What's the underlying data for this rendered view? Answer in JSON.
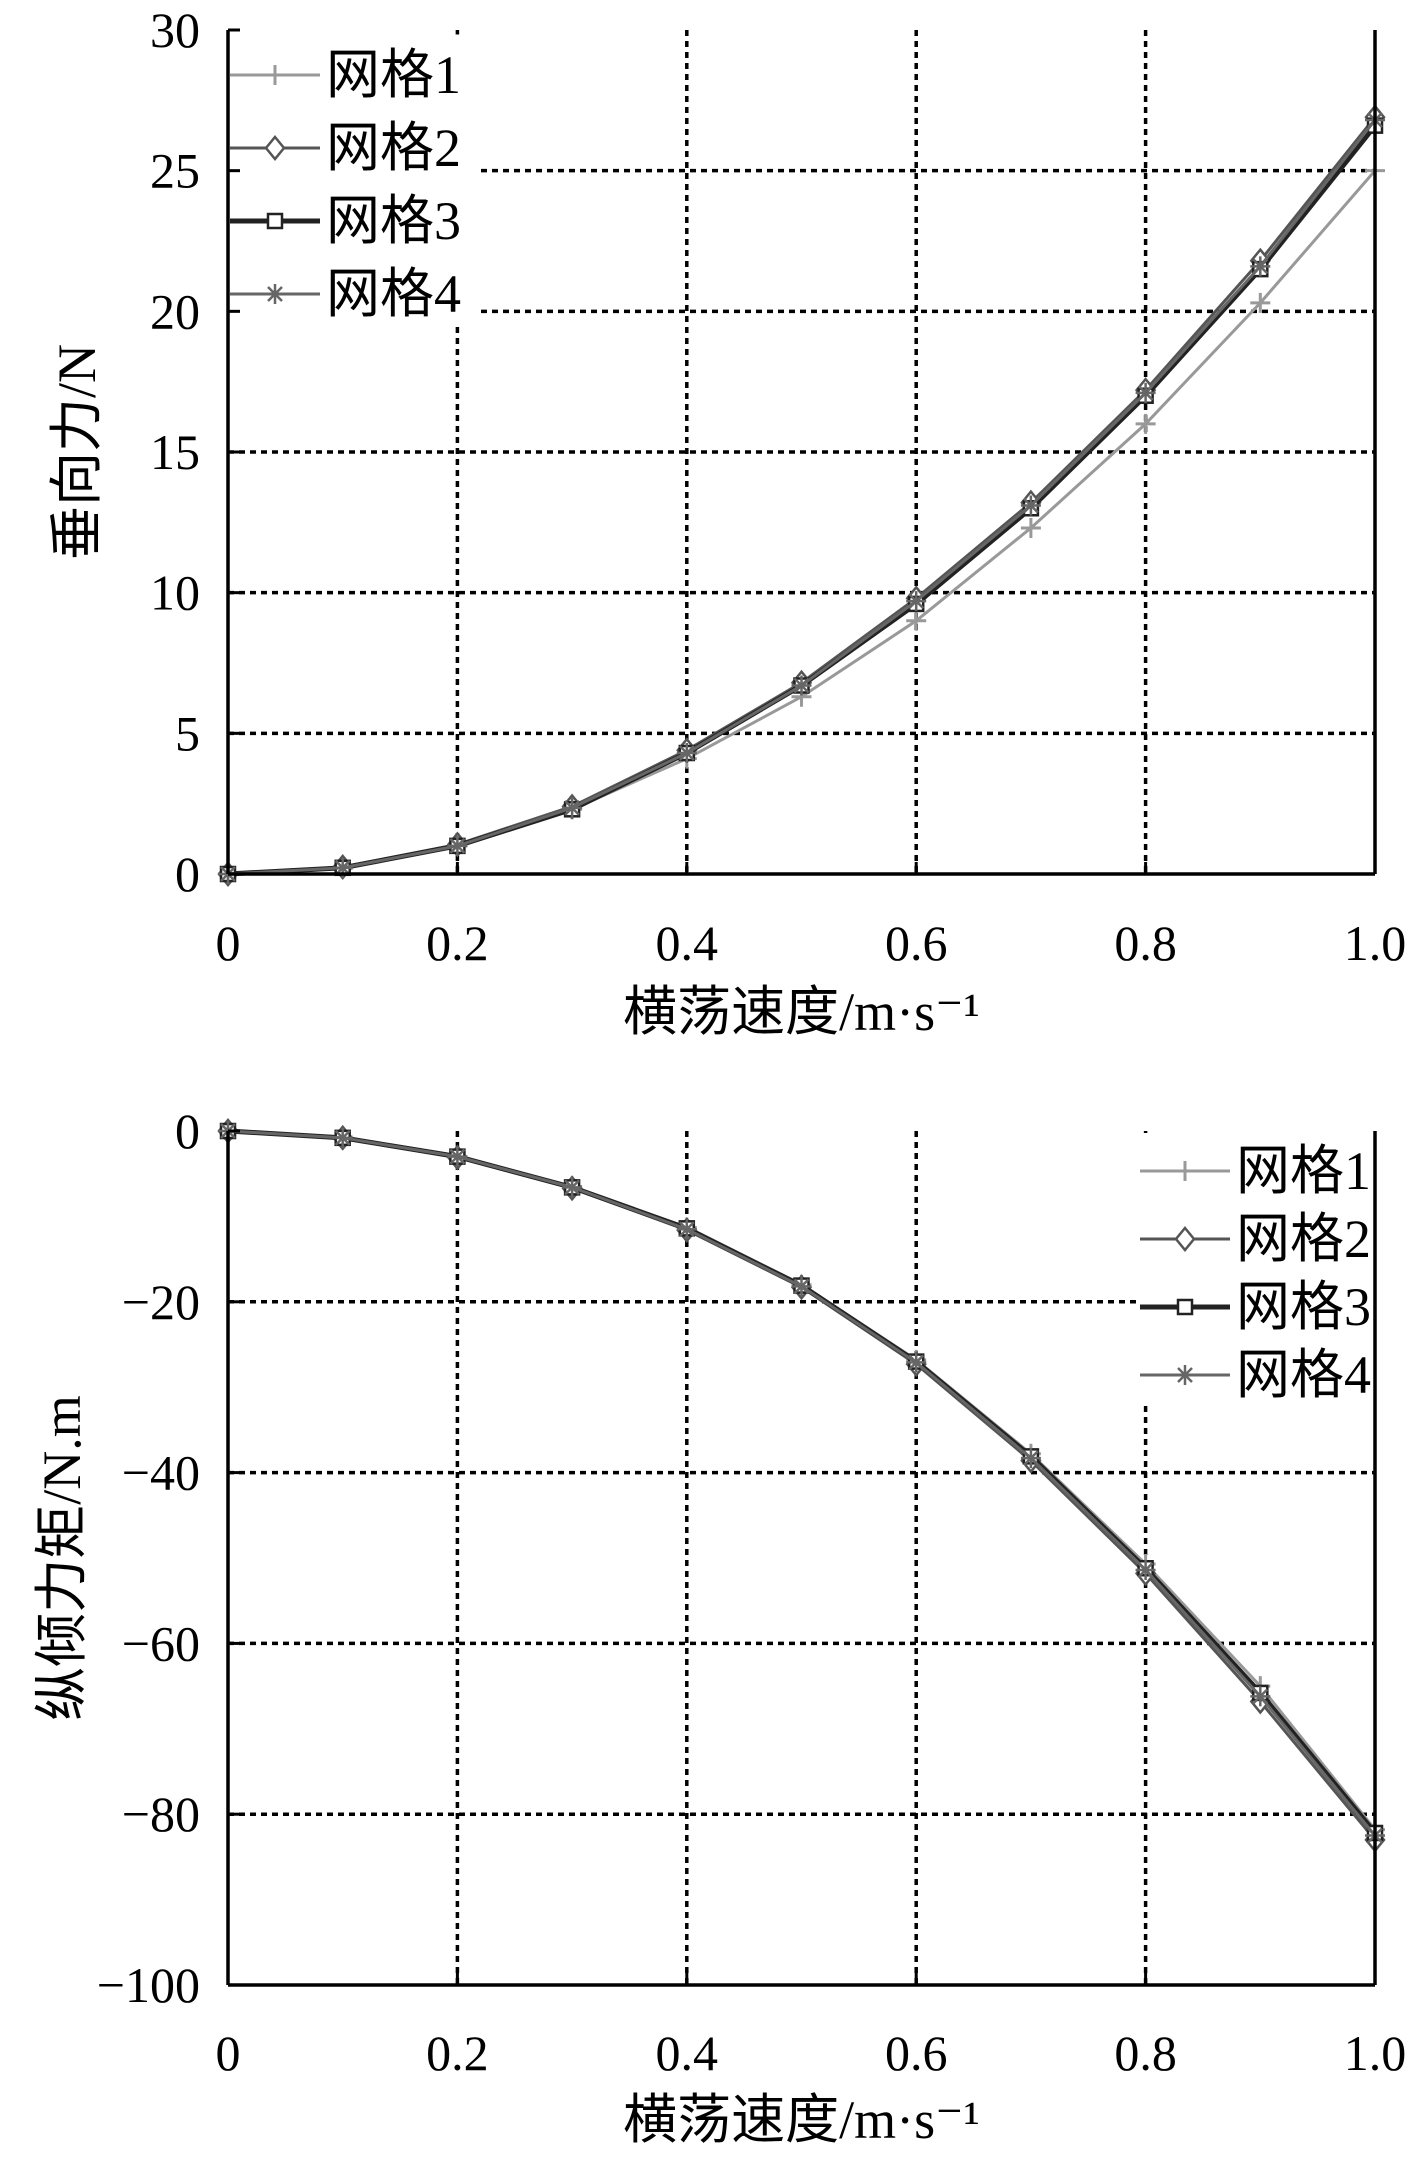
{
  "chart_data": [
    {
      "type": "line",
      "xlabel": "横荡速度/m·s⁻¹",
      "ylabel": "垂向力/N",
      "xlim": [
        0,
        1.0
      ],
      "ylim": [
        0,
        30
      ],
      "xticks": [
        "0",
        "0.2",
        "0.4",
        "0.6",
        "0.8",
        "1.0"
      ],
      "yticks": [
        "0",
        "5",
        "10",
        "15",
        "20",
        "25",
        "30"
      ],
      "grid": true,
      "legend_position": "top-left",
      "x": [
        0,
        0.1,
        0.2,
        0.3,
        0.4,
        0.5,
        0.6,
        0.7,
        0.8,
        0.9,
        1.0
      ],
      "series": [
        {
          "name": "网格1",
          "marker": "plus",
          "color": "#999999",
          "values": [
            0,
            0.2,
            1.0,
            2.3,
            4.1,
            6.3,
            9.0,
            12.3,
            16.0,
            20.3,
            25.0
          ]
        },
        {
          "name": "网格2",
          "marker": "diamond",
          "color": "#555555",
          "values": [
            0,
            0.25,
            1.05,
            2.4,
            4.4,
            6.8,
            9.8,
            13.2,
            17.2,
            21.8,
            26.9
          ]
        },
        {
          "name": "网格3",
          "marker": "square",
          "color": "#222222",
          "values": [
            0,
            0.22,
            1.0,
            2.3,
            4.3,
            6.7,
            9.6,
            13.0,
            17.0,
            21.5,
            26.6
          ]
        },
        {
          "name": "网格4",
          "marker": "star",
          "color": "#666666",
          "values": [
            0,
            0.22,
            1.0,
            2.35,
            4.3,
            6.7,
            9.7,
            13.1,
            17.1,
            21.6,
            26.8
          ]
        }
      ]
    },
    {
      "type": "line",
      "xlabel": "横荡速度/m·s⁻¹",
      "ylabel": "纵倾力矩/N.m",
      "xlim": [
        0,
        1.0
      ],
      "ylim": [
        -100,
        0
      ],
      "xticks": [
        "0",
        "0.2",
        "0.4",
        "0.6",
        "0.8",
        "1.0"
      ],
      "yticks": [
        "0",
        "−20",
        "−40",
        "−60",
        "−80",
        "−100"
      ],
      "grid": true,
      "legend_position": "top-right",
      "x": [
        0,
        0.1,
        0.2,
        0.3,
        0.4,
        0.5,
        0.6,
        0.7,
        0.8,
        0.9,
        1.0
      ],
      "series": [
        {
          "name": "网格1",
          "marker": "plus",
          "color": "#999999",
          "values": [
            0,
            -0.7,
            -3.0,
            -6.5,
            -11.3,
            -18.0,
            -26.8,
            -37.8,
            -50.7,
            -65.0,
            -81.8
          ]
        },
        {
          "name": "网格2",
          "marker": "diamond",
          "color": "#555555",
          "values": [
            0,
            -0.8,
            -3.1,
            -6.7,
            -11.6,
            -18.3,
            -27.3,
            -38.6,
            -51.8,
            -66.8,
            -83.0
          ]
        },
        {
          "name": "网格3",
          "marker": "square",
          "color": "#222222",
          "values": [
            0,
            -0.8,
            -3.0,
            -6.6,
            -11.4,
            -18.1,
            -27.0,
            -38.1,
            -51.2,
            -65.8,
            -82.2
          ]
        },
        {
          "name": "网格4",
          "marker": "star",
          "color": "#666666",
          "values": [
            0,
            -0.8,
            -3.0,
            -6.6,
            -11.5,
            -18.2,
            -27.1,
            -38.3,
            -51.4,
            -66.2,
            -82.5
          ]
        }
      ]
    }
  ]
}
